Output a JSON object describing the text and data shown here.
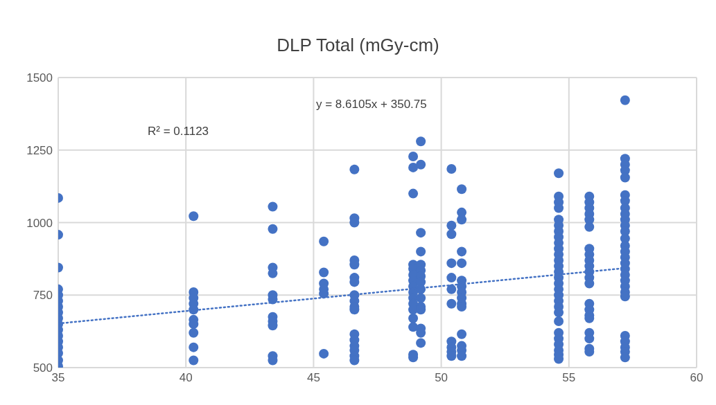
{
  "chart_data": {
    "type": "scatter",
    "title": "DLP Total (mGy-cm)",
    "xlim": [
      35,
      60
    ],
    "xticks": [
      35,
      40,
      45,
      50,
      55,
      60
    ],
    "ylim": [
      500,
      1500
    ],
    "yticks": [
      500,
      750,
      1000,
      1250,
      1500
    ],
    "grid": true,
    "legend": false,
    "marker": "circle",
    "annotations": [
      "y = 8.6105x + 350.75",
      "R² = 0.1123"
    ],
    "series": [
      {
        "type": "scatter",
        "color": "#4472c4",
        "x": [
          35,
          35,
          35,
          35,
          35,
          35,
          35,
          35,
          35,
          35,
          35,
          35,
          35,
          35,
          35,
          35,
          35,
          40.3,
          40.3,
          40.3,
          40.3,
          40.3,
          40.3,
          40.3,
          40.3,
          40.3,
          40.3,
          43.4,
          43.4,
          43.4,
          43.4,
          43.4,
          43.4,
          43.4,
          43.4,
          43.4,
          43.4,
          43.4,
          45.4,
          45.4,
          45.4,
          45.4,
          45.4,
          45.4,
          46.6,
          46.6,
          46.6,
          46.6,
          46.6,
          46.6,
          46.6,
          46.6,
          46.6,
          46.6,
          46.6,
          46.6,
          46.6,
          46.6,
          46.6,
          46.6,
          46.6,
          48.9,
          48.9,
          48.9,
          48.9,
          48.9,
          48.9,
          48.9,
          48.9,
          48.9,
          48.9,
          48.9,
          48.9,
          48.9,
          48.9,
          48.9,
          48.9,
          49.2,
          49.2,
          49.2,
          49.2,
          49.2,
          49.2,
          49.2,
          49.2,
          49.2,
          49.2,
          49.2,
          49.2,
          49.2,
          49.2,
          49.2,
          50.4,
          50.4,
          50.4,
          50.4,
          50.4,
          50.4,
          50.4,
          50.4,
          50.4,
          50.4,
          50.4,
          50.8,
          50.8,
          50.8,
          50.8,
          50.8,
          50.8,
          50.8,
          50.8,
          50.8,
          50.8,
          50.8,
          50.8,
          50.8,
          50.8,
          50.8,
          54.6,
          54.6,
          54.6,
          54.6,
          54.6,
          54.6,
          54.6,
          54.6,
          54.6,
          54.6,
          54.6,
          54.6,
          54.6,
          54.6,
          54.6,
          54.6,
          54.6,
          54.6,
          54.6,
          54.6,
          54.6,
          54.6,
          54.6,
          54.6,
          54.6,
          54.6,
          54.6,
          54.6,
          55.8,
          55.8,
          55.8,
          55.8,
          55.8,
          55.8,
          55.8,
          55.8,
          55.8,
          55.8,
          55.8,
          55.8,
          55.8,
          55.8,
          55.8,
          55.8,
          55.8,
          55.8,
          55.8,
          55.8,
          55.8,
          57.2,
          57.2,
          57.2,
          57.2,
          57.2,
          57.2,
          57.2,
          57.2,
          57.2,
          57.2,
          57.2,
          57.2,
          57.2,
          57.2,
          57.2,
          57.2,
          57.2,
          57.2,
          57.2,
          57.2,
          57.2,
          57.2,
          57.2,
          57.2,
          57.2,
          57.2,
          57.2,
          57.2
        ],
        "values": [
          1085,
          958,
          845,
          770,
          750,
          730,
          710,
          690,
          670,
          650,
          630,
          610,
          590,
          570,
          550,
          525,
          505,
          1022,
          760,
          740,
          720,
          700,
          665,
          650,
          620,
          570,
          525,
          1055,
          978,
          845,
          825,
          750,
          735,
          675,
          660,
          645,
          540,
          525,
          935,
          828,
          790,
          770,
          755,
          548,
          1183,
          1015,
          1000,
          870,
          855,
          810,
          795,
          750,
          730,
          710,
          700,
          615,
          595,
          575,
          560,
          540,
          525,
          1228,
          1190,
          1100,
          855,
          840,
          820,
          800,
          780,
          760,
          740,
          720,
          700,
          670,
          640,
          545,
          535,
          1280,
          1200,
          965,
          900,
          855,
          835,
          815,
          795,
          770,
          740,
          710,
          700,
          635,
          620,
          585,
          1185,
          990,
          960,
          860,
          810,
          770,
          720,
          590,
          570,
          555,
          540,
          1115,
          1035,
          1010,
          900,
          860,
          800,
          780,
          760,
          740,
          720,
          710,
          615,
          575,
          560,
          540,
          1170,
          1090,
          1070,
          1050,
          1010,
          990,
          970,
          950,
          930,
          910,
          890,
          870,
          850,
          830,
          810,
          790,
          770,
          750,
          730,
          710,
          690,
          660,
          620,
          600,
          580,
          560,
          545,
          530,
          1090,
          1070,
          1050,
          1030,
          1010,
          985,
          910,
          890,
          870,
          850,
          830,
          810,
          790,
          720,
          700,
          680,
          670,
          620,
          600,
          565,
          555,
          1422,
          1220,
          1200,
          1180,
          1155,
          1095,
          1075,
          1050,
          1030,
          1010,
          990,
          970,
          945,
          920,
          900,
          880,
          860,
          840,
          820,
          800,
          780,
          760,
          745,
          610,
          590,
          570,
          555,
          535
        ]
      },
      {
        "type": "line",
        "color": "#4472c4",
        "line_style": "dotted",
        "marker": "none",
        "x": [
          35,
          57.2
        ],
        "values": [
          652,
          843
        ]
      }
    ]
  }
}
